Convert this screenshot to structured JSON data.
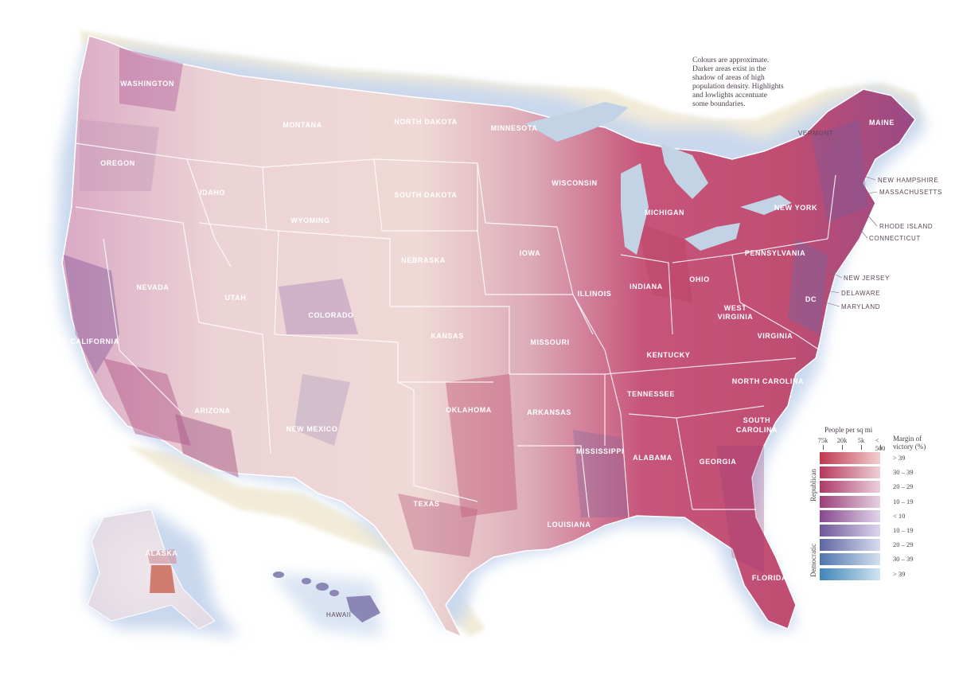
{
  "note": {
    "lines": [
      "Colours are approximate.",
      "Darker areas exist in the",
      "shadow of areas of high",
      "population density. Highlights",
      "and lowlights accentuate",
      "some boundaries."
    ]
  },
  "states": {
    "washington": "WASHINGTON",
    "oregon": "OREGON",
    "california": "CALIFORNIA",
    "idaho": "IDAHO",
    "nevada": "NEVADA",
    "montana": "MONTANA",
    "wyoming": "WYOMING",
    "utah": "UTAH",
    "arizona": "ARIZONA",
    "colorado": "COLORADO",
    "new_mexico": "NEW MEXICO",
    "north_dakota": "NORTH DAKOTA",
    "south_dakota": "SOUTH DAKOTA",
    "nebraska": "NEBRASKA",
    "kansas": "KANSAS",
    "oklahoma": "OKLAHOMA",
    "texas": "TEXAS",
    "minnesota": "MINNESOTA",
    "iowa": "IOWA",
    "missouri": "MISSOURI",
    "arkansas": "ARKANSAS",
    "louisiana": "LOUISIANA",
    "wisconsin": "WISCONSIN",
    "illinois": "ILLINOIS",
    "michigan": "MICHIGAN",
    "indiana": "INDIANA",
    "ohio": "OHIO",
    "kentucky": "KENTUCKY",
    "tennessee": "TENNESSEE",
    "mississippi": "MISSISSIPPI",
    "alabama": "ALABAMA",
    "georgia": "GEORGIA",
    "florida": "FLORIDA",
    "south_carolina_1": "SOUTH",
    "south_carolina_2": "CAROLINA",
    "north_carolina": "NORTH CAROLINA",
    "virginia": "VIRGINIA",
    "west_virginia_1": "WEST",
    "west_virginia_2": "VIRGINIA",
    "pennsylvania": "PENNSYLVANIA",
    "new_york": "NEW YORK",
    "maine": "MAINE",
    "dc": "DC",
    "alaska": "ALASKA",
    "hawaii": "HAWAII",
    "vermont": "VERMONT",
    "new_hampshire": "NEW HAMPSHIRE",
    "massachusetts": "MASSACHUSETTS",
    "rhode_island": "RHODE ISLAND",
    "connecticut": "CONNECTICUT",
    "new_jersey": "NEW JERSEY",
    "delaware": "DELAWARE",
    "maryland": "MARYLAND"
  },
  "legend": {
    "density_title": "People per sq mi",
    "density_ticks": [
      "75k",
      "20k",
      "5k",
      "< 500"
    ],
    "margin_title_1": "Margin of",
    "margin_title_2": "victory (%)",
    "republican": "Republican",
    "democratic": "Democratic",
    "categories": [
      {
        "label": "> 39",
        "dark": "#c0384f",
        "light": "#f1cfcf"
      },
      {
        "label": "30 – 39",
        "dark": "#b8385c",
        "light": "#eed0d7"
      },
      {
        "label": "20 – 29",
        "dark": "#ad3a68",
        "light": "#ebd0dc"
      },
      {
        "label": "10 – 19",
        "dark": "#9c3f79",
        "light": "#e6d1e2"
      },
      {
        "label": "< 10",
        "dark": "#86488d",
        "light": "#e1d4e9"
      },
      {
        "label": "10 – 19",
        "dark": "#6f5699",
        "light": "#dcd7ec"
      },
      {
        "label": "20 – 29",
        "dark": "#5e66a3",
        "light": "#d8dcee"
      },
      {
        "label": "30 – 39",
        "dark": "#4f75ad",
        "light": "#d4e0f0"
      },
      {
        "label": "> 39",
        "dark": "#3f86b7",
        "light": "#d0e4f2"
      }
    ]
  },
  "colors": {
    "ocean_glow": "#c9d8ee",
    "land_base": "#ead2d6",
    "republican_strong": "#c0384f",
    "democratic_strong": "#3f86b7",
    "lake": "#c3d3e6",
    "canada_edge": "#efe7cf"
  }
}
